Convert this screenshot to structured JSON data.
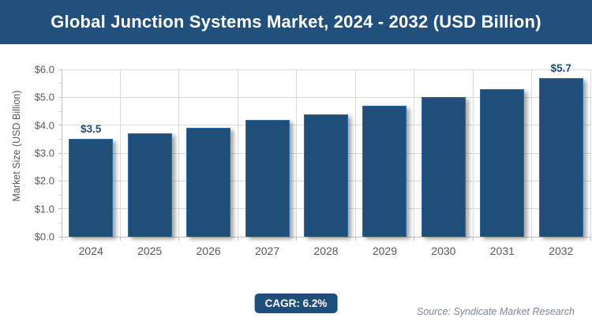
{
  "header": {
    "title": "Global Junction Systems Market, 2024 - 2032 (USD Billion)",
    "bg_color": "#22507C"
  },
  "chart_data": {
    "type": "bar",
    "title": "Global Junction Systems Market, 2024 - 2032 (USD Billion)",
    "categories": [
      "2024",
      "2025",
      "2026",
      "2027",
      "2028",
      "2029",
      "2030",
      "2031",
      "2032"
    ],
    "values": [
      3.5,
      3.7,
      3.9,
      4.2,
      4.4,
      4.7,
      5.0,
      5.3,
      5.7
    ],
    "labeled_points": [
      {
        "index": 0,
        "text": "$3.5"
      },
      {
        "index": 8,
        "text": "$5.7"
      }
    ],
    "xlabel": "",
    "ylabel": "Market Size (USD Billion)",
    "ylim": [
      0,
      6
    ],
    "yticks": [
      "$0.0",
      "$1.0",
      "$2.0",
      "$3.0",
      "$4.0",
      "$5.0",
      "$6.0"
    ],
    "grid": "horizontal major gridlines + vertical category-boundary gridlines",
    "legend": "none",
    "bar_color": "#1F4E79",
    "bar_border_color": "#2E6CA3",
    "gridline_color": "#d9d9d9"
  },
  "footer": {
    "cagr_label": "CAGR: 6.2%",
    "source": "Source: Syndicate Market Research"
  }
}
